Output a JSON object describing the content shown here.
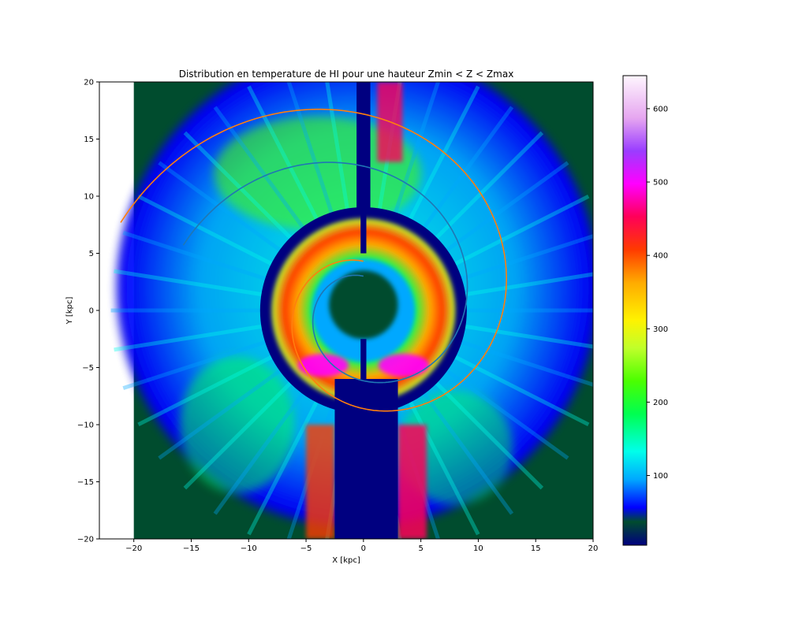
{
  "chart_data": {
    "type": "heatmap",
    "title": "Distribution en temperature de HI pour une hauteur Zmin < Z < Zmax",
    "xlabel": "X [kpc]",
    "ylabel": "Y [kpc]",
    "xlim": [
      -23,
      20
    ],
    "ylim": [
      -20,
      20
    ],
    "data_extent": {
      "x": [
        -20,
        20
      ],
      "y": [
        -20,
        20
      ]
    },
    "xticks": [
      -20,
      -15,
      -10,
      -5,
      0,
      5,
      10,
      15,
      20
    ],
    "yticks": [
      -20,
      -15,
      -10,
      -5,
      0,
      5,
      10,
      15,
      20
    ],
    "grid": false,
    "colormap": "gist_ncar",
    "colorbar": {
      "range": [
        5,
        645
      ],
      "ticks": [
        100,
        200,
        300,
        400,
        500,
        600
      ]
    },
    "colors": {
      "blue_overlay": "#1f77b4",
      "orange_overlay": "#ff7f0e",
      "background_low": "#000080"
    },
    "overlays": [
      {
        "type": "spiral",
        "color": "#1f77b4",
        "center": [
          0,
          0
        ],
        "r_start": 3.0,
        "r_end": 16.7,
        "angle_start_deg": 90,
        "angle_end_deg": 520
      },
      {
        "type": "spiral",
        "color": "#ff7f0e",
        "center": [
          0,
          0
        ],
        "r_start": 4.3,
        "r_end": 22.5,
        "angle_start_deg": 90,
        "angle_end_deg": 520
      }
    ],
    "features": {
      "cavity_ring_radius": 9.0,
      "hot_ring_inner_radius": 4.5,
      "hot_ring_outer_radius": 8.0,
      "bottom_stem_halfwidth": [
        2.5,
        3.0
      ],
      "top_stem_halfwidth": 0.6
    }
  }
}
